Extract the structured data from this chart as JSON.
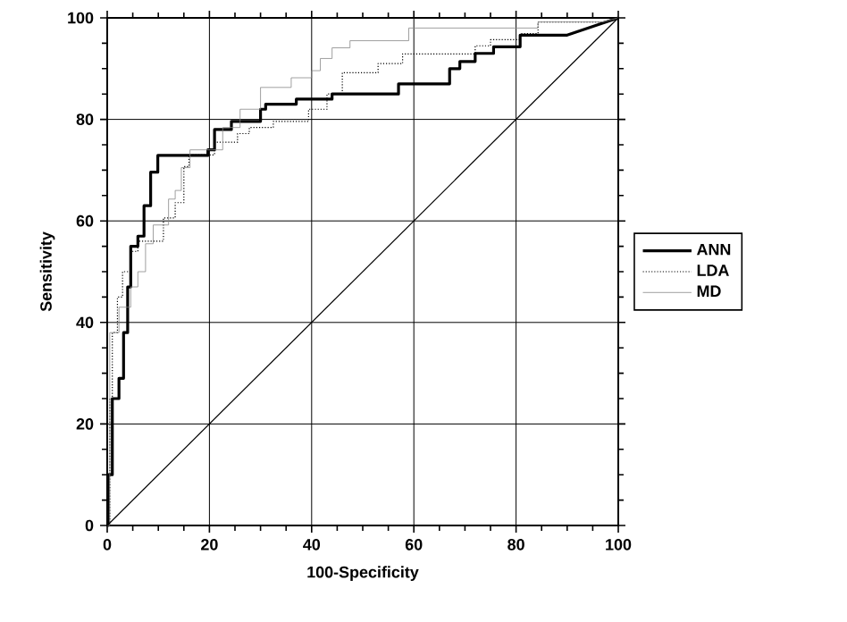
{
  "chart_data": {
    "type": "line",
    "xlabel": "100-Specificity",
    "ylabel": "Sensitivity",
    "xlim": [
      0,
      100
    ],
    "ylim": [
      0,
      100
    ],
    "xticks": [
      0,
      20,
      40,
      60,
      80,
      100
    ],
    "yticks": [
      0,
      20,
      40,
      60,
      80,
      100
    ],
    "grid": true,
    "legend": "right",
    "marker": "none",
    "series": [
      {
        "name": "ANN",
        "color": "#000000",
        "line_style": "solid",
        "x": [
          0,
          0.2,
          0.2,
          1,
          1,
          2.3,
          2.3,
          3.2,
          3.2,
          4,
          4,
          4.6,
          4.6,
          6,
          6,
          7.2,
          7.2,
          8.5,
          8.5,
          9.9,
          9.9,
          19.7,
          19.7,
          21,
          21,
          24.3,
          24.3,
          30,
          30,
          31,
          31,
          37,
          37,
          44,
          44,
          57,
          57,
          67,
          67,
          69,
          69,
          72,
          72,
          75.6,
          75.6,
          80.8,
          80.8,
          90,
          100
        ],
        "values": [
          0,
          0,
          10,
          10,
          25,
          25,
          29,
          29,
          38,
          38,
          47,
          47,
          55,
          55,
          57,
          57,
          63,
          63,
          69.6,
          69.6,
          72.9,
          72.9,
          74,
          74,
          78,
          78,
          79.6,
          79.6,
          82,
          82,
          83,
          83,
          84,
          84,
          85,
          85,
          87,
          87,
          90,
          90,
          91.4,
          91.4,
          93,
          93,
          94.3,
          94.3,
          96.6,
          96.6,
          100
        ]
      },
      {
        "name": "LDA",
        "color": "#000000",
        "line_style": "dotted",
        "x": [
          0,
          0.5,
          0.5,
          1,
          1,
          2,
          2,
          3,
          3,
          4.5,
          4.5,
          6,
          6,
          11,
          11,
          13.3,
          13.3,
          15,
          15,
          16,
          16,
          21,
          21,
          25.5,
          25.5,
          27.8,
          27.8,
          32.5,
          32.5,
          39.4,
          39.4,
          43,
          43,
          46,
          46,
          53,
          53,
          57.8,
          57.8,
          72,
          72,
          75,
          75,
          80.8,
          80.8,
          84.3,
          84.3,
          97,
          100
        ],
        "values": [
          0,
          0,
          25,
          25,
          38,
          38,
          45,
          45,
          50,
          50,
          54,
          54,
          56,
          56,
          60.6,
          60.6,
          63.6,
          63.6,
          70.7,
          70.7,
          73,
          73,
          75.5,
          75.5,
          77.2,
          77.2,
          78.4,
          78.4,
          79.6,
          79.6,
          82,
          82,
          85,
          85,
          89.2,
          89.2,
          91,
          91,
          92.9,
          92.9,
          94.5,
          94.5,
          95.7,
          95.7,
          96.9,
          96.9,
          99.2,
          99.2,
          100
        ]
      },
      {
        "name": "MD",
        "color": "#888888",
        "line_style": "solid",
        "x": [
          0,
          0.5,
          0.5,
          2.3,
          2.3,
          4.6,
          4.6,
          6,
          6,
          7.5,
          7.5,
          9,
          9,
          12,
          12,
          13.3,
          13.3,
          14.5,
          14.5,
          16.2,
          16.2,
          22.6,
          22.6,
          26,
          26,
          30,
          30,
          36,
          36,
          40,
          40,
          41.7,
          41.7,
          44,
          44,
          47.5,
          47.5,
          59,
          59,
          84.3,
          84.3,
          97,
          100
        ],
        "values": [
          0,
          0,
          38,
          38,
          43,
          43,
          47,
          47,
          50,
          50,
          55.5,
          55.5,
          59.2,
          59.2,
          64.3,
          64.3,
          66,
          66,
          70.5,
          70.5,
          74,
          74,
          78.4,
          78.4,
          82,
          82,
          86.3,
          86.3,
          88.2,
          88.2,
          89.6,
          89.6,
          92,
          92,
          94.1,
          94.1,
          95.5,
          95.5,
          98,
          98,
          99.2,
          99.2,
          100
        ]
      },
      {
        "color": "#000000",
        "line_style": "solid",
        "x": [
          0,
          100
        ],
        "values": [
          0,
          100
        ]
      }
    ]
  }
}
